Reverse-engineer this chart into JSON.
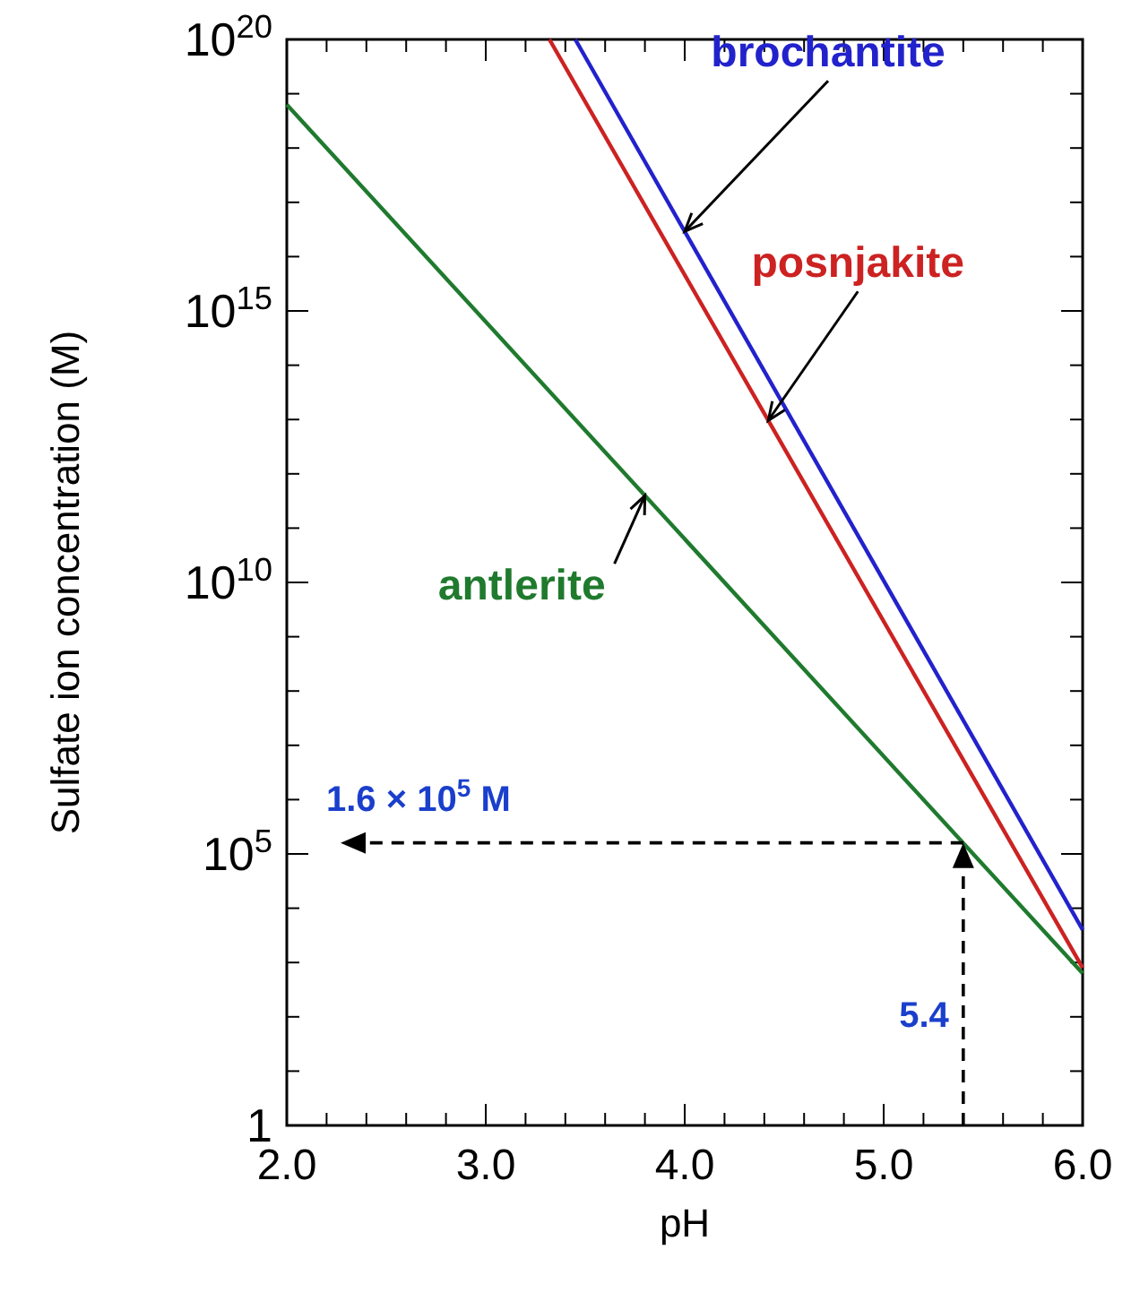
{
  "chart_data": {
    "type": "line",
    "xlabel": "pH",
    "ylabel": "Sulfate ion concentration (M)",
    "log": "y",
    "grid": false,
    "legend": false,
    "marker": "none",
    "line_style": "solid",
    "xlim": [
      2,
      6
    ],
    "ylim": [
      1,
      1e+20
    ],
    "xticks": [
      {
        "value": 2,
        "label": "2.0"
      },
      {
        "value": 2.2,
        "label": null
      },
      {
        "value": 2.4,
        "label": null
      },
      {
        "value": 2.6,
        "label": null
      },
      {
        "value": 2.8,
        "label": null
      },
      {
        "value": 3,
        "label": "3.0"
      },
      {
        "value": 3.2,
        "label": null
      },
      {
        "value": 3.4,
        "label": null
      },
      {
        "value": 3.6,
        "label": null
      },
      {
        "value": 3.8,
        "label": null
      },
      {
        "value": 4,
        "label": "4.0"
      },
      {
        "value": 4.2,
        "label": null
      },
      {
        "value": 4.4,
        "label": null
      },
      {
        "value": 4.6,
        "label": null
      },
      {
        "value": 4.8,
        "label": null
      },
      {
        "value": 5,
        "label": "5.0"
      },
      {
        "value": 5.2,
        "label": null
      },
      {
        "value": 5.4,
        "label": null
      },
      {
        "value": 5.6,
        "label": null
      },
      {
        "value": 5.8,
        "label": null
      },
      {
        "value": 6,
        "label": "6.0"
      }
    ],
    "yticks": [
      1,
      {
        "value": 10.0,
        "label": null
      },
      {
        "value": 100.0,
        "label": null
      },
      {
        "value": 1000.0,
        "label": null
      },
      {
        "value": 10000.0,
        "label": null
      },
      {
        "value": 100000.0,
        "label": "10$^{5}$"
      },
      {
        "value": 1000000.0,
        "label": null
      },
      {
        "value": 10000000.0,
        "label": null
      },
      {
        "value": 100000000.0,
        "label": null
      },
      {
        "value": 1000000000.0,
        "label": null
      },
      {
        "value": 10000000000.0,
        "label": "10$^{10}$"
      },
      {
        "value": 100000000000.0,
        "label": null
      },
      {
        "value": 1000000000000.0,
        "label": null
      },
      {
        "value": 10000000000000.0,
        "label": null
      },
      {
        "value": 100000000000000.0,
        "label": null
      },
      {
        "value": 1000000000000000.0,
        "label": "10$^{15}$"
      },
      {
        "value": 1e+16,
        "label": null
      },
      {
        "value": 1e+17,
        "label": null
      },
      {
        "value": 1e+18,
        "label": null
      },
      {
        "value": 1e+19,
        "label": null
      },
      {
        "value": 1e+20,
        "label": "10$^{20}$"
      }
    ],
    "series": [
      {
        "name": "antlerite",
        "color": "#1f7a2e",
        "x": [
          2,
          6
        ],
        "values": [
          6.3e+18,
          630
        ]
      },
      {
        "name": "posnjakite",
        "color": "#cc2222",
        "x": [
          3.32,
          6
        ],
        "values": [
          1e+20,
          800
        ]
      },
      {
        "name": "brochantite",
        "color": "#2222cc",
        "x": [
          3.45,
          6
        ],
        "values": [
          1e+20,
          4000
        ]
      }
    ],
    "annotations": [
      {
        "text": "1.6 × 10$^{5}$ M",
        "x": 5.4,
        "y": 160000
      },
      "5.4"
    ]
  }
}
